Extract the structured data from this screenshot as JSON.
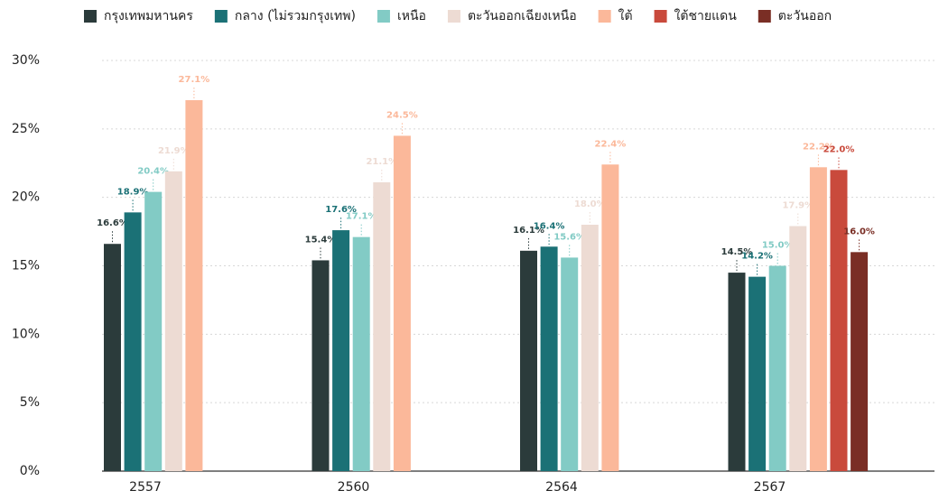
{
  "chart_data": {
    "type": "bar",
    "categories": [
      "2557",
      "2560",
      "2564",
      "2567"
    ],
    "series": [
      {
        "name": "กรุงเทพมหานคร",
        "color": "#2b3b3b",
        "values": [
          16.6,
          15.4,
          16.1,
          14.5
        ],
        "value_labels": [
          "16.6%",
          "15.4%",
          "16.1%",
          "14.5%"
        ]
      },
      {
        "name": "กลาง (ไม่รวมกรุงเทพ)",
        "color": "#1b7176",
        "values": [
          18.9,
          17.6,
          16.4,
          14.2
        ],
        "value_labels": [
          "18.9%",
          "17.6%",
          "16.4%",
          "14.2%"
        ]
      },
      {
        "name": "เหนือ",
        "color": "#82cbc5",
        "values": [
          20.4,
          17.1,
          15.6,
          15.0
        ],
        "value_labels": [
          "20.4%",
          "17.1%",
          "15.6%",
          "15.0%"
        ]
      },
      {
        "name": "ตะวันออกเฉียงเหนือ",
        "color": "#eddbd3",
        "values": [
          21.9,
          21.1,
          18.0,
          17.9
        ],
        "value_labels": [
          "21.9%",
          "21.1%",
          "18.0%",
          "17.9%"
        ]
      },
      {
        "name": "ใต้",
        "color": "#fbb89a",
        "values": [
          27.1,
          24.5,
          22.4,
          22.2
        ],
        "value_labels": [
          "27.1%",
          "24.5%",
          "22.4%",
          "22.2%"
        ]
      },
      {
        "name": "ใต้ชายแดน",
        "color": "#c94a3c",
        "values": [
          null,
          null,
          null,
          22.0
        ],
        "value_labels": [
          null,
          null,
          null,
          "22.0%"
        ]
      },
      {
        "name": "ตะวันออก",
        "color": "#7a2e25",
        "values": [
          null,
          null,
          null,
          16.0
        ],
        "value_labels": [
          null,
          null,
          null,
          "16.0%"
        ]
      }
    ],
    "ylim": [
      0,
      30
    ],
    "yticks": [
      {
        "value": 0,
        "label": "0%"
      },
      {
        "value": 5,
        "label": "5%"
      },
      {
        "value": 10,
        "label": "10%"
      },
      {
        "value": 15,
        "label": "15%"
      },
      {
        "value": 20,
        "label": "20%"
      },
      {
        "value": 25,
        "label": "25%"
      },
      {
        "value": 30,
        "label": "30%"
      }
    ],
    "grid": true
  }
}
